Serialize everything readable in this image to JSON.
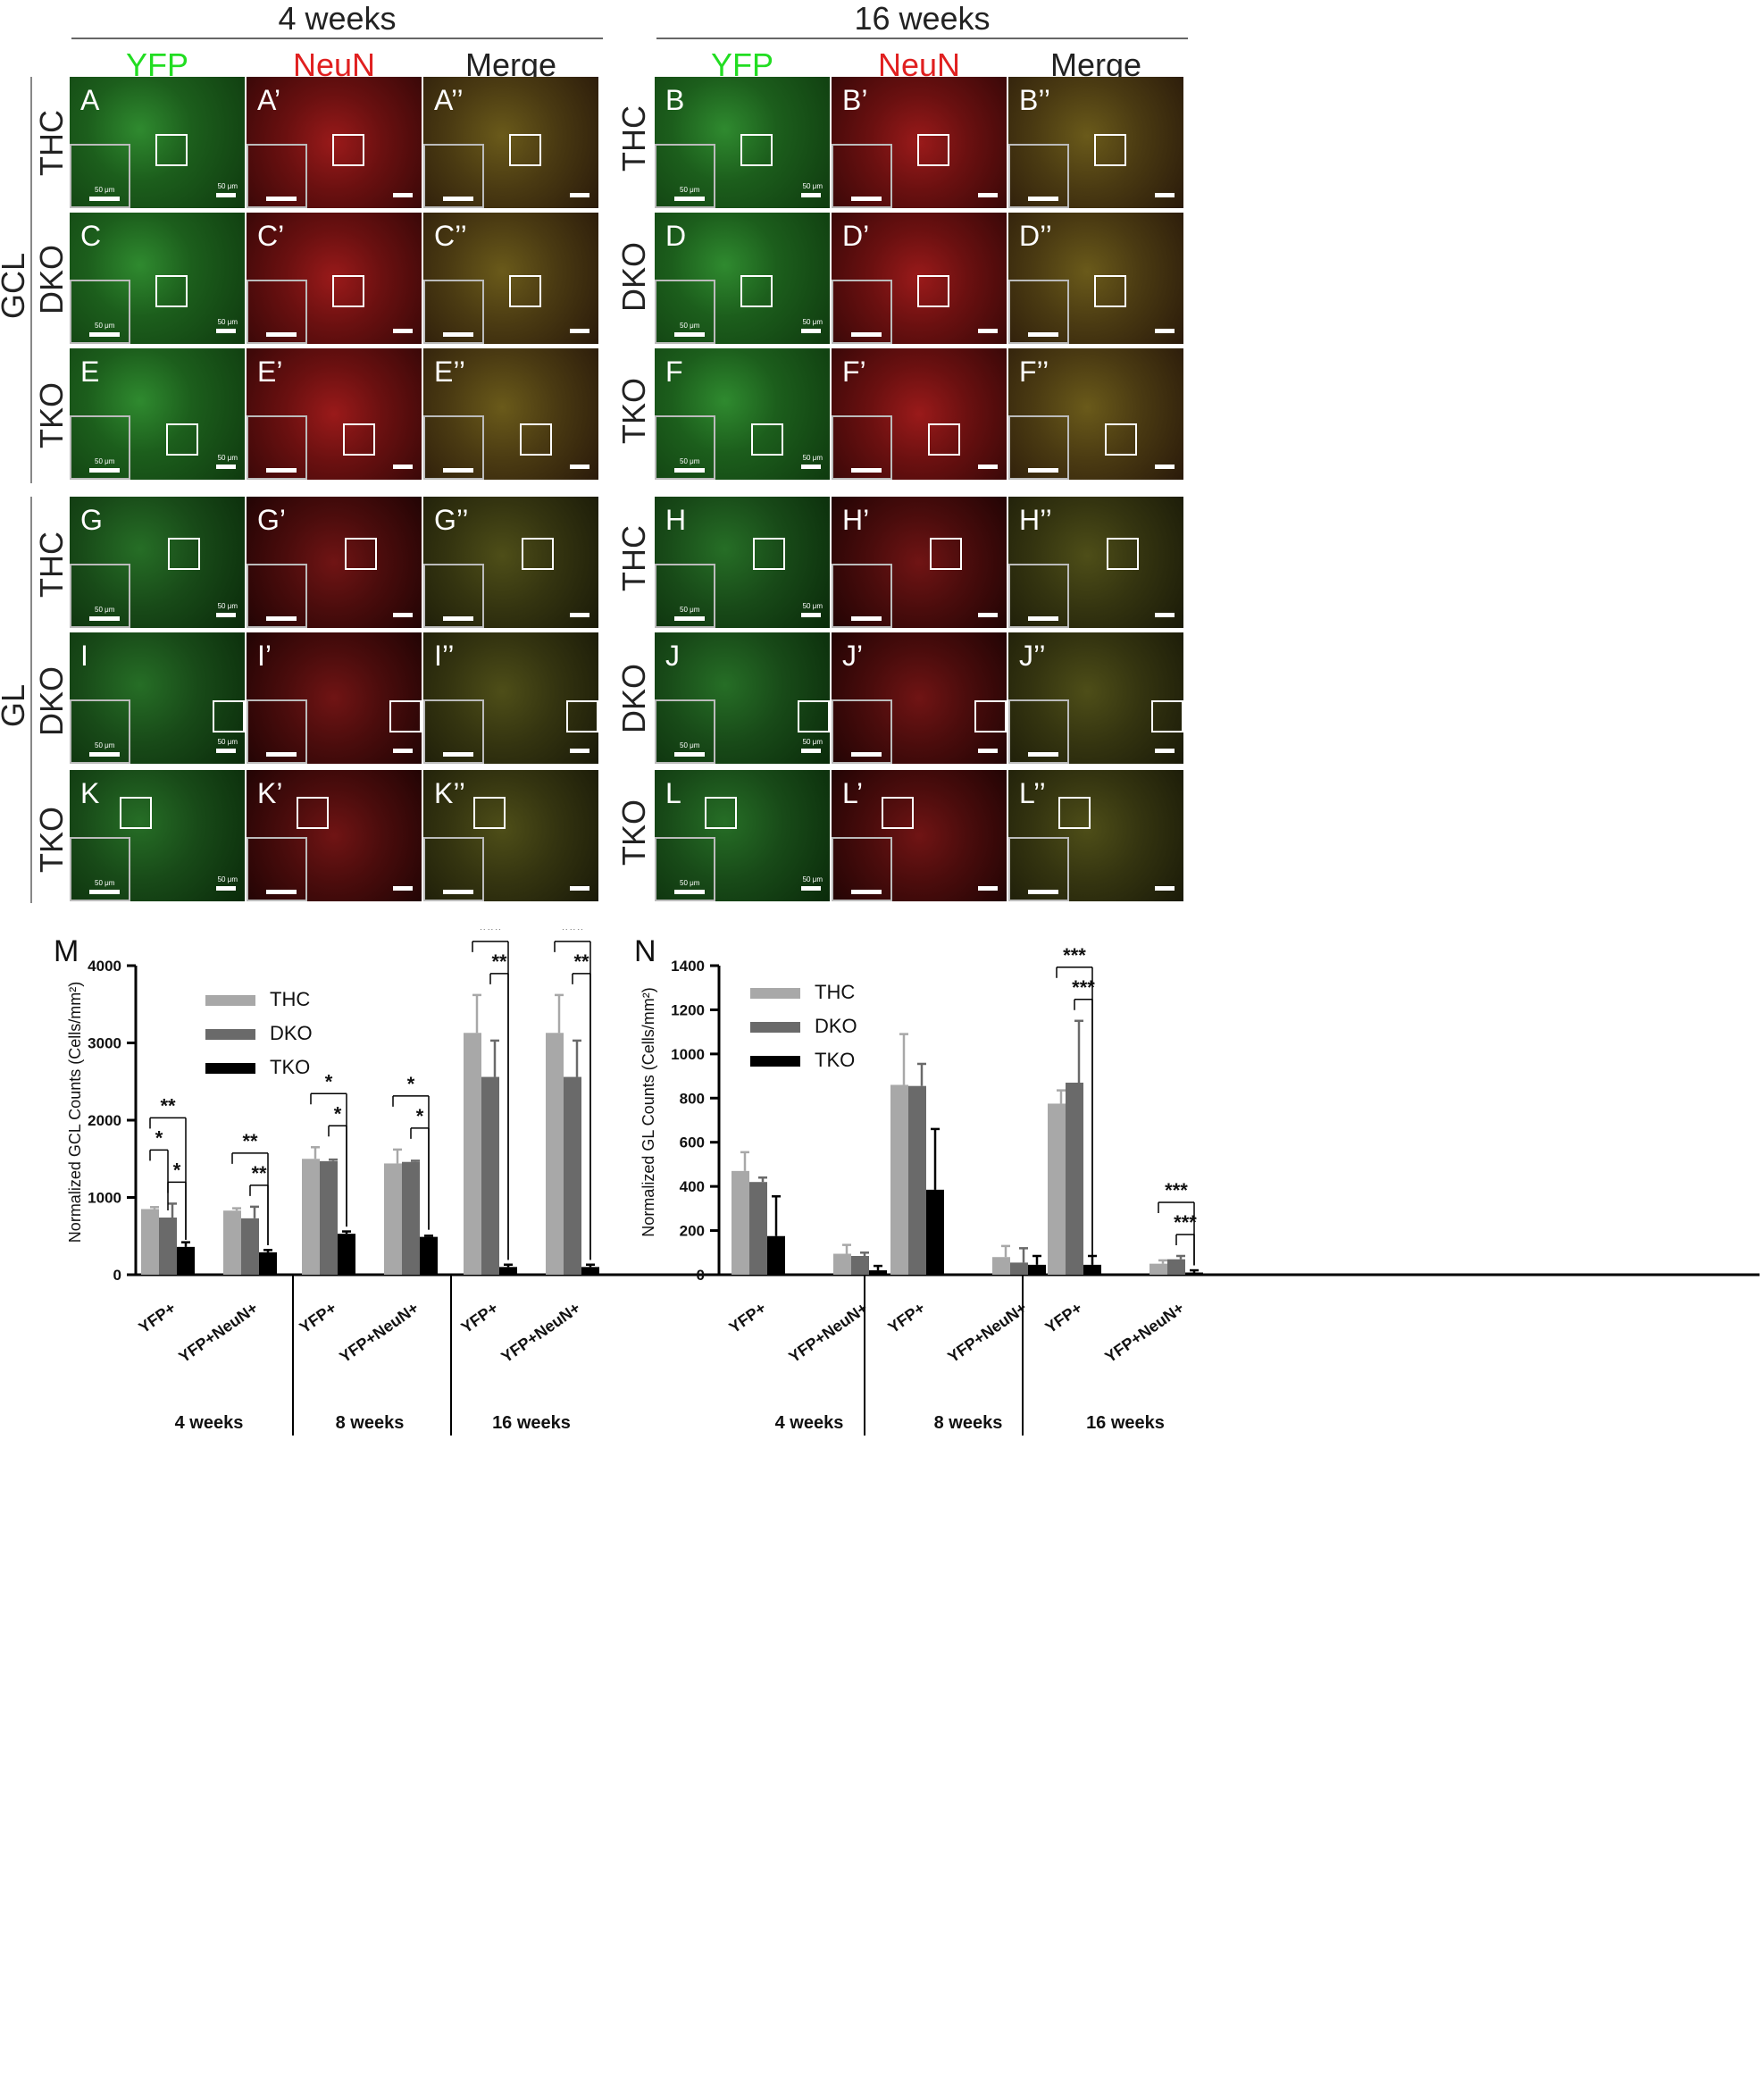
{
  "figure": {
    "time_headers": [
      "4 weeks",
      "16 weeks"
    ],
    "channels": [
      "YFP",
      "NeuN",
      "Merge"
    ],
    "regions": [
      "GCL",
      "GL"
    ],
    "genotypes": [
      "THC",
      "DKO",
      "TKO"
    ],
    "inset_scale_label": "50 μm",
    "scale_label": "50 μm",
    "colors": {
      "yfp": "#22dd22",
      "neun": "#e02020",
      "merge": "#222222"
    },
    "panels_4w": [
      [
        "A",
        "A’",
        "A’’"
      ],
      [
        "C",
        "C’",
        "C’’"
      ],
      [
        "E",
        "E’",
        "E’’"
      ],
      [
        "G",
        "G’",
        "G’’"
      ],
      [
        "I",
        "I’",
        "I’’"
      ],
      [
        "K",
        "K’",
        "K’’"
      ]
    ],
    "panels_16w": [
      [
        "B",
        "B’",
        "B’’"
      ],
      [
        "D",
        "D’",
        "D’’"
      ],
      [
        "F",
        "F’",
        "F’’"
      ],
      [
        "H",
        "H’",
        "H’’"
      ],
      [
        "J",
        "J’",
        "J’’"
      ],
      [
        "L",
        "L’",
        "L’’"
      ]
    ]
  },
  "chart_data": [
    {
      "panel_label": "M",
      "type": "bar",
      "ylabel": "Normalized GCL Counts (Cells/mm²)",
      "ylim": [
        0,
        4000
      ],
      "yticks": [
        0,
        1000,
        2000,
        3000,
        4000
      ],
      "groups": [
        "4 weeks",
        "8 weeks",
        "16 weeks"
      ],
      "categories": [
        "YFP+",
        "YFP+NeuN+"
      ],
      "legend": [
        "THC",
        "DKO",
        "TKO"
      ],
      "series_colors": [
        "#a8a8a8",
        "#6a6a6a",
        "#000000"
      ],
      "values": [
        [
          [
            850,
            740,
            360
          ],
          [
            830,
            730,
            290
          ]
        ],
        [
          [
            1500,
            1470,
            530
          ],
          [
            1440,
            1460,
            490
          ]
        ],
        [
          [
            3130,
            2560,
            100
          ],
          [
            3130,
            2560,
            100
          ]
        ]
      ],
      "errors": [
        [
          [
            25,
            180,
            60
          ],
          [
            30,
            150,
            30
          ]
        ],
        [
          [
            150,
            20,
            30
          ],
          [
            180,
            15,
            15
          ]
        ],
        [
          [
            490,
            470,
            30
          ],
          [
            490,
            470,
            30
          ]
        ]
      ],
      "significance": [
        {
          "group": 0,
          "cat": 0,
          "from": 0,
          "to": 2,
          "label": "**"
        },
        {
          "group": 0,
          "cat": 0,
          "from": 0,
          "to": 1,
          "label": "*"
        },
        {
          "group": 0,
          "cat": 0,
          "from": 1,
          "to": 2,
          "label": "*"
        },
        {
          "group": 0,
          "cat": 1,
          "from": 0,
          "to": 2,
          "label": "**"
        },
        {
          "group": 0,
          "cat": 1,
          "from": 1,
          "to": 2,
          "label": "**"
        },
        {
          "group": 1,
          "cat": 0,
          "from": 0,
          "to": 2,
          "label": "*"
        },
        {
          "group": 1,
          "cat": 0,
          "from": 1,
          "to": 2,
          "label": "*"
        },
        {
          "group": 1,
          "cat": 1,
          "from": 0,
          "to": 2,
          "label": "*"
        },
        {
          "group": 1,
          "cat": 1,
          "from": 1,
          "to": 2,
          "label": "*"
        },
        {
          "group": 2,
          "cat": 0,
          "from": 0,
          "to": 2,
          "label": "***"
        },
        {
          "group": 2,
          "cat": 0,
          "from": 1,
          "to": 2,
          "label": "**"
        },
        {
          "group": 2,
          "cat": 1,
          "from": 0,
          "to": 2,
          "label": "***"
        },
        {
          "group": 2,
          "cat": 1,
          "from": 1,
          "to": 2,
          "label": "**"
        }
      ]
    },
    {
      "panel_label": "N",
      "type": "bar",
      "ylabel": "Normalized GL Counts (Cells/mm²)",
      "ylim": [
        0,
        1400
      ],
      "yticks": [
        0,
        200,
        400,
        600,
        800,
        1000,
        1200,
        1400
      ],
      "groups": [
        "4 weeks",
        "8 weeks",
        "16 weeks"
      ],
      "categories": [
        "YFP+",
        "YFP+NeuN+"
      ],
      "legend": [
        "THC",
        "DKO",
        "TKO"
      ],
      "series_colors": [
        "#a8a8a8",
        "#6a6a6a",
        "#000000"
      ],
      "values": [
        [
          [
            470,
            420,
            175
          ],
          [
            95,
            85,
            20
          ]
        ],
        [
          [
            860,
            855,
            385
          ],
          [
            80,
            55,
            45
          ]
        ],
        [
          [
            775,
            870,
            45
          ],
          [
            50,
            70,
            10
          ]
        ]
      ],
      "errors": [
        [
          [
            85,
            20,
            180
          ],
          [
            40,
            15,
            20
          ]
        ],
        [
          [
            230,
            100,
            275
          ],
          [
            50,
            65,
            40
          ]
        ],
        [
          [
            60,
            280,
            40
          ],
          [
            15,
            15,
            10
          ]
        ]
      ],
      "significance": [
        {
          "group": 2,
          "cat": 0,
          "from": 0,
          "to": 2,
          "label": "***"
        },
        {
          "group": 2,
          "cat": 0,
          "from": 1,
          "to": 2,
          "label": "***"
        },
        {
          "group": 2,
          "cat": 1,
          "from": 0,
          "to": 2,
          "label": "***"
        },
        {
          "group": 2,
          "cat": 1,
          "from": 1,
          "to": 2,
          "label": "***"
        }
      ]
    }
  ]
}
